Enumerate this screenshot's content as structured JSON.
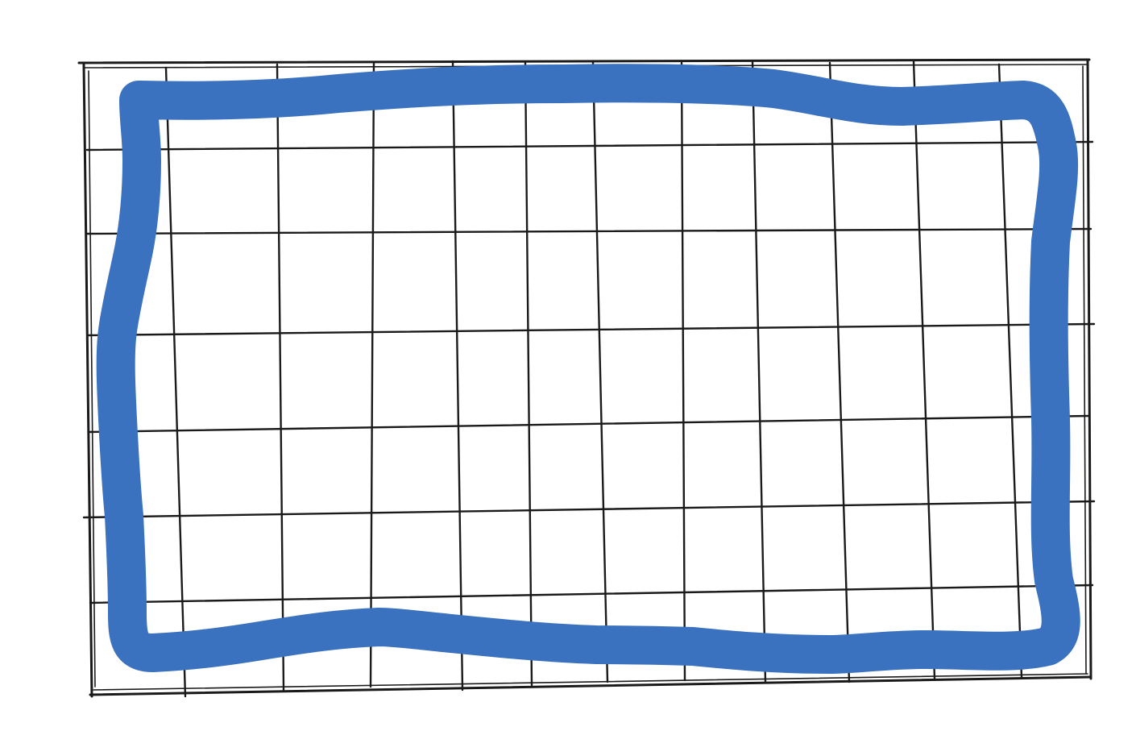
{
  "colors": {
    "background": "#ffffff",
    "grid": "#1a1a1a",
    "outline": "#3a72bf"
  },
  "grid": {
    "columns": 12,
    "rows": 7
  },
  "outline": {
    "shape": "hand-drawn-rectangle"
  }
}
